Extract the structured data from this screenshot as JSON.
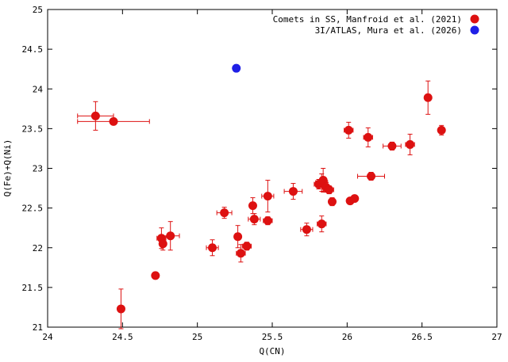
{
  "chart_data": {
    "type": "scatter",
    "title": "",
    "xlabel": "Q(CN)",
    "ylabel": "Q(Fe)+Q(Ni)",
    "xlim": [
      24,
      27
    ],
    "ylim": [
      21,
      25
    ],
    "xticks": [
      "24",
      "24.5",
      "25",
      "25.5",
      "26",
      "26.5",
      "27"
    ],
    "yticks": [
      "21",
      "21.5",
      "22",
      "22.5",
      "23",
      "23.5",
      "24",
      "24.5",
      "25"
    ],
    "grid": false,
    "legend_position": "top-right",
    "series": [
      {
        "name": "Comets in SS, Manfroid et al. (2021)",
        "color": "#dd1111",
        "points": [
          {
            "x": 24.32,
            "y": 23.66,
            "xerr": 0.12,
            "yerr": 0.18
          },
          {
            "x": 24.44,
            "y": 23.59,
            "xerr": 0.24,
            "yerr": 0.03
          },
          {
            "x": 24.49,
            "y": 21.23,
            "xerr": 0.02,
            "yerr": 0.25
          },
          {
            "x": 24.72,
            "y": 21.65,
            "xerr": 0.0,
            "yerr": 0.0
          },
          {
            "x": 24.76,
            "y": 22.12,
            "xerr": 0.03,
            "yerr": 0.13
          },
          {
            "x": 24.77,
            "y": 22.05,
            "xerr": 0.02,
            "yerr": 0.08
          },
          {
            "x": 24.82,
            "y": 22.15,
            "xerr": 0.06,
            "yerr": 0.18
          },
          {
            "x": 25.1,
            "y": 22.0,
            "xerr": 0.04,
            "yerr": 0.1
          },
          {
            "x": 25.18,
            "y": 22.44,
            "xerr": 0.05,
            "yerr": 0.07
          },
          {
            "x": 25.27,
            "y": 22.14,
            "xerr": 0.02,
            "yerr": 0.14
          },
          {
            "x": 25.29,
            "y": 21.93,
            "xerr": 0.03,
            "yerr": 0.11
          },
          {
            "x": 25.33,
            "y": 22.02,
            "xerr": 0.03,
            "yerr": 0.05
          },
          {
            "x": 25.37,
            "y": 22.53,
            "xerr": 0.02,
            "yerr": 0.1
          },
          {
            "x": 25.38,
            "y": 22.36,
            "xerr": 0.04,
            "yerr": 0.07
          },
          {
            "x": 25.47,
            "y": 22.65,
            "xerr": 0.04,
            "yerr": 0.2
          },
          {
            "x": 25.47,
            "y": 22.34,
            "xerr": 0.03,
            "yerr": 0.05
          },
          {
            "x": 25.64,
            "y": 22.71,
            "xerr": 0.06,
            "yerr": 0.1
          },
          {
            "x": 25.73,
            "y": 22.23,
            "xerr": 0.04,
            "yerr": 0.08
          },
          {
            "x": 25.81,
            "y": 22.8,
            "xerr": 0.03,
            "yerr": 0.06
          },
          {
            "x": 25.83,
            "y": 22.82,
            "xerr": 0.04,
            "yerr": 0.11
          },
          {
            "x": 25.84,
            "y": 22.85,
            "xerr": 0.02,
            "yerr": 0.15
          },
          {
            "x": 25.86,
            "y": 22.76,
            "xerr": 0.02,
            "yerr": 0.06
          },
          {
            "x": 25.88,
            "y": 22.73,
            "xerr": 0.03,
            "yerr": 0.05
          },
          {
            "x": 25.83,
            "y": 22.3,
            "xerr": 0.03,
            "yerr": 0.1
          },
          {
            "x": 25.9,
            "y": 22.58,
            "xerr": 0.02,
            "yerr": 0.05
          },
          {
            "x": 26.01,
            "y": 23.48,
            "xerr": 0.03,
            "yerr": 0.1
          },
          {
            "x": 26.02,
            "y": 22.59,
            "xerr": 0.02,
            "yerr": 0.03
          },
          {
            "x": 26.05,
            "y": 22.62,
            "xerr": 0.02,
            "yerr": 0.03
          },
          {
            "x": 26.14,
            "y": 23.39,
            "xerr": 0.03,
            "yerr": 0.12
          },
          {
            "x": 26.16,
            "y": 22.9,
            "xerr": 0.09,
            "yerr": 0.05
          },
          {
            "x": 26.3,
            "y": 23.28,
            "xerr": 0.06,
            "yerr": 0.05
          },
          {
            "x": 26.42,
            "y": 23.3,
            "xerr": 0.03,
            "yerr": 0.13
          },
          {
            "x": 26.54,
            "y": 23.89,
            "xerr": 0.02,
            "yerr": 0.21
          },
          {
            "x": 26.63,
            "y": 23.48,
            "xerr": 0.02,
            "yerr": 0.06
          }
        ]
      },
      {
        "name": "3I/ATLAS, Mura et al. (2026)",
        "color": "#1f1fe6",
        "points": [
          {
            "x": 25.26,
            "y": 24.26,
            "xerr": 0.0,
            "yerr": 0.0
          }
        ]
      }
    ]
  }
}
